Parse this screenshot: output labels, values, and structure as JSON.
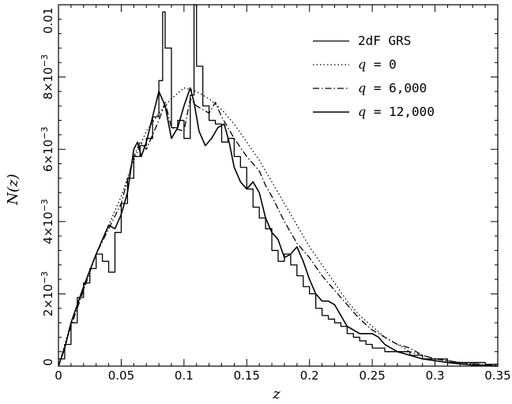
{
  "chart_data": {
    "type": "line",
    "title": "",
    "xlabel": "z",
    "ylabel": "N(z)",
    "xlim": [
      0,
      0.35
    ],
    "ylim": [
      0,
      0.01
    ],
    "grid": false,
    "legend_position": "top-right",
    "x_ticks": [
      0,
      0.05,
      0.1,
      0.15,
      0.2,
      0.25,
      0.3,
      0.35
    ],
    "x_tick_labels": [
      "0",
      "0.05",
      "0.1",
      "0.15",
      "0.2",
      "0.25",
      "0.3",
      "0.35"
    ],
    "y_ticks": [
      0,
      0.002,
      0.004,
      0.006,
      0.008,
      0.01
    ],
    "y_tick_labels": [
      {
        "mantissa": "0",
        "exp": ""
      },
      {
        "mantissa": "2×10",
        "exp": "−3"
      },
      {
        "mantissa": "4×10",
        "exp": "−3"
      },
      {
        "mantissa": "6×10",
        "exp": "−3"
      },
      {
        "mantissa": "8×10",
        "exp": "−3"
      },
      {
        "mantissa": "0.01",
        "exp": ""
      }
    ],
    "series": [
      {
        "name": "2dF GRS",
        "legend": {
          "prefix": "2dF GRS",
          "q": "",
          "rest": ""
        },
        "style": "steps",
        "x": [
          0.0,
          0.005,
          0.01,
          0.015,
          0.02,
          0.025,
          0.03,
          0.035,
          0.04,
          0.045,
          0.05,
          0.055,
          0.06,
          0.065,
          0.07,
          0.075,
          0.08,
          0.083,
          0.085,
          0.09,
          0.095,
          0.1,
          0.105,
          0.108,
          0.11,
          0.115,
          0.12,
          0.125,
          0.13,
          0.135,
          0.14,
          0.145,
          0.15,
          0.155,
          0.16,
          0.165,
          0.17,
          0.175,
          0.18,
          0.185,
          0.19,
          0.195,
          0.2,
          0.205,
          0.21,
          0.215,
          0.22,
          0.225,
          0.23,
          0.235,
          0.24,
          0.245,
          0.25,
          0.26,
          0.27,
          0.28,
          0.29,
          0.3,
          0.31,
          0.32,
          0.33,
          0.34,
          0.35
        ],
        "y": [
          0.0002,
          0.0006,
          0.0012,
          0.0019,
          0.0023,
          0.0027,
          0.0031,
          0.0029,
          0.0026,
          0.0037,
          0.0045,
          0.0052,
          0.0058,
          0.0061,
          0.0063,
          0.0069,
          0.0079,
          0.0098,
          0.0088,
          0.0066,
          0.0068,
          0.0063,
          0.0075,
          0.01,
          0.0083,
          0.0072,
          0.0068,
          0.0067,
          0.0062,
          0.0063,
          0.0058,
          0.0055,
          0.0049,
          0.0044,
          0.0041,
          0.0038,
          0.0032,
          0.0029,
          0.0031,
          0.0028,
          0.0025,
          0.0022,
          0.002,
          0.0016,
          0.0014,
          0.0013,
          0.0012,
          0.0011,
          0.0009,
          0.0008,
          0.0007,
          0.0006,
          0.0005,
          0.0004,
          0.0004,
          0.0003,
          0.0002,
          0.0002,
          0.0001,
          0.0001,
          0.0001,
          5e-05,
          0.0
        ]
      },
      {
        "name": "q = 0",
        "legend": {
          "prefix": "",
          "q": "q",
          "rest": " = 0"
        },
        "style": "dotted",
        "x": [
          0.0,
          0.01,
          0.02,
          0.03,
          0.04,
          0.05,
          0.06,
          0.07,
          0.08,
          0.09,
          0.1,
          0.11,
          0.12,
          0.13,
          0.14,
          0.15,
          0.16,
          0.17,
          0.18,
          0.19,
          0.2,
          0.21,
          0.22,
          0.23,
          0.24,
          0.25,
          0.26,
          0.27,
          0.28,
          0.29,
          0.3,
          0.31,
          0.32,
          0.33,
          0.34,
          0.35
        ],
        "y": [
          0.0,
          0.0012,
          0.0022,
          0.0031,
          0.0039,
          0.0047,
          0.0057,
          0.0065,
          0.007,
          0.0074,
          0.0077,
          0.0076,
          0.0074,
          0.0071,
          0.0067,
          0.0062,
          0.0057,
          0.0051,
          0.0045,
          0.0039,
          0.0033,
          0.0028,
          0.0023,
          0.0018,
          0.0014,
          0.0011,
          0.0008,
          0.0006,
          0.0004,
          0.0003,
          0.0002,
          0.00015,
          0.0001,
          6e-05,
          3e-05,
          1e-05
        ]
      },
      {
        "name": "q = 6,000",
        "legend": {
          "prefix": "",
          "q": "q",
          "rest": " = 6,000"
        },
        "style": "dashdot",
        "x": [
          0.0,
          0.01,
          0.02,
          0.03,
          0.04,
          0.05,
          0.06,
          0.065,
          0.07,
          0.08,
          0.085,
          0.09,
          0.1,
          0.105,
          0.11,
          0.12,
          0.125,
          0.13,
          0.14,
          0.15,
          0.16,
          0.165,
          0.17,
          0.18,
          0.19,
          0.2,
          0.21,
          0.22,
          0.23,
          0.24,
          0.25,
          0.26,
          0.27,
          0.28,
          0.29,
          0.3,
          0.32,
          0.35
        ],
        "y": [
          0.0,
          0.0011,
          0.0021,
          0.0031,
          0.0038,
          0.0045,
          0.0058,
          0.0062,
          0.006,
          0.0068,
          0.0073,
          0.0066,
          0.0065,
          0.0074,
          0.0072,
          0.007,
          0.0073,
          0.0069,
          0.0063,
          0.0058,
          0.0054,
          0.005,
          0.0047,
          0.004,
          0.0034,
          0.003,
          0.0025,
          0.0021,
          0.0017,
          0.0013,
          0.001,
          0.0008,
          0.0006,
          0.0005,
          0.0003,
          0.0002,
          0.0001,
          1e-05
        ]
      },
      {
        "name": "q = 12,000",
        "legend": {
          "prefix": "",
          "q": "q",
          "rest": " = 12,000"
        },
        "style": "solid",
        "x": [
          0.0,
          0.005,
          0.01,
          0.02,
          0.03,
          0.04,
          0.045,
          0.05,
          0.055,
          0.06,
          0.063,
          0.066,
          0.07,
          0.075,
          0.08,
          0.085,
          0.09,
          0.095,
          0.1,
          0.105,
          0.108,
          0.112,
          0.117,
          0.122,
          0.127,
          0.132,
          0.136,
          0.14,
          0.145,
          0.15,
          0.155,
          0.16,
          0.165,
          0.17,
          0.175,
          0.18,
          0.185,
          0.19,
          0.195,
          0.2,
          0.205,
          0.21,
          0.215,
          0.22,
          0.225,
          0.23,
          0.235,
          0.24,
          0.245,
          0.25,
          0.255,
          0.26,
          0.27,
          0.28,
          0.29,
          0.3,
          0.31,
          0.32,
          0.33,
          0.34,
          0.35
        ],
        "y": [
          0.0,
          0.0005,
          0.0012,
          0.0022,
          0.0031,
          0.0039,
          0.0038,
          0.0042,
          0.0048,
          0.006,
          0.0062,
          0.0058,
          0.0062,
          0.0069,
          0.0076,
          0.0072,
          0.0063,
          0.0066,
          0.0072,
          0.0077,
          0.0073,
          0.0065,
          0.0061,
          0.0063,
          0.0066,
          0.0067,
          0.0062,
          0.0055,
          0.0051,
          0.0049,
          0.0051,
          0.0048,
          0.0041,
          0.0037,
          0.0035,
          0.003,
          0.0031,
          0.0033,
          0.0029,
          0.0024,
          0.002,
          0.0018,
          0.0018,
          0.0017,
          0.0014,
          0.0011,
          0.001,
          0.0009,
          0.0009,
          0.0009,
          0.0008,
          0.0006,
          0.0004,
          0.0003,
          0.0002,
          0.00015,
          0.0001,
          6e-05,
          3e-05,
          1e-05,
          0.0
        ]
      }
    ]
  }
}
